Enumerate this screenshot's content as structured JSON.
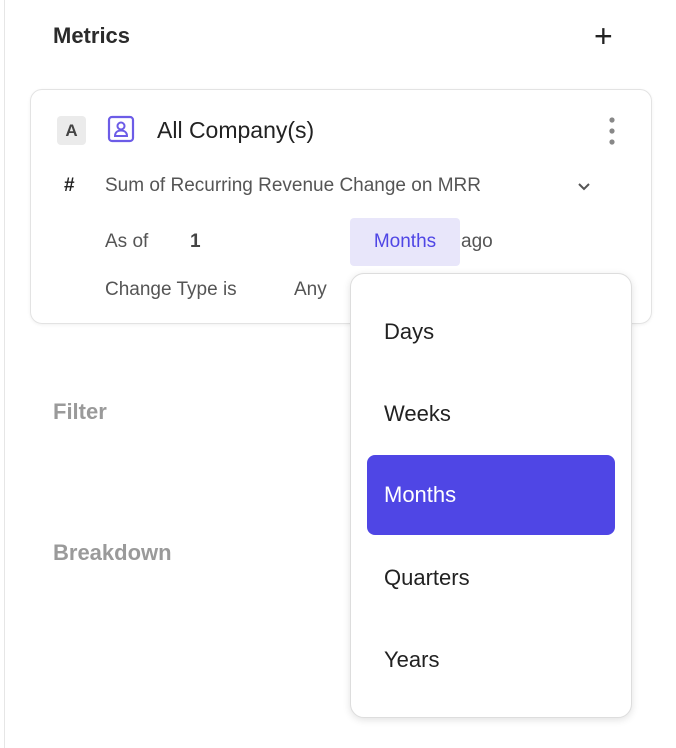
{
  "header": {
    "title": "Metrics",
    "add_icon": "plus-icon"
  },
  "metric": {
    "badge": "A",
    "entity_icon": "person-icon",
    "title": "All Company(s)",
    "menu_icon": "kebab-icon",
    "measure_symbol": "#",
    "measure": "Sum of Recurring Revenue Change on MRR",
    "as_of_label": "As of",
    "as_of_value": "1",
    "unit": "Months",
    "ago": "ago",
    "change_type_label": "Change Type is",
    "change_type_value": "Any"
  },
  "sections": {
    "filter": "Filter",
    "breakdown": "Breakdown"
  },
  "dropdown": {
    "options": [
      "Days",
      "Weeks",
      "Months",
      "Quarters",
      "Years"
    ],
    "selected": "Months"
  },
  "colors": {
    "accent": "#4f46e5",
    "pill_bg": "#e8e6fa"
  }
}
